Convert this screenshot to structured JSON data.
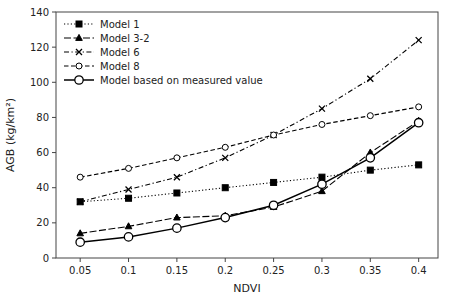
{
  "chart_data": {
    "type": "line",
    "x": [
      0.05,
      0.1,
      0.15,
      0.2,
      0.25,
      0.3,
      0.35,
      0.4
    ],
    "xlabel": "NDVI",
    "ylabel": "AGB  (kg/km²)",
    "xlim": [
      0.025,
      0.42
    ],
    "xticks": [
      0.05,
      0.1,
      0.15,
      0.2,
      0.25,
      0.3,
      0.35,
      0.4
    ],
    "ylim": [
      0,
      140
    ],
    "yticks": [
      0,
      20,
      40,
      60,
      80,
      100,
      120,
      140
    ],
    "grid": false,
    "legend": "upper left",
    "color": "#000000",
    "series": [
      {
        "name": "Model 1",
        "values": [
          32,
          34,
          37,
          40,
          43,
          46,
          50,
          53
        ],
        "marker": "square",
        "line_style": "dotted"
      },
      {
        "name": "Model 3-2",
        "values": [
          14,
          18,
          23,
          24,
          29,
          38,
          60,
          78
        ],
        "marker": "triangle",
        "line_style": "longdash"
      },
      {
        "name": "Model 6",
        "values": [
          32,
          39,
          46,
          57,
          70,
          85,
          102,
          124
        ],
        "marker": "x",
        "line_style": "dashdot"
      },
      {
        "name": "Model 8",
        "values": [
          46,
          51,
          57,
          63,
          70,
          76,
          81,
          86
        ],
        "marker": "circle",
        "line_style": "dashed"
      },
      {
        "name": "Model based on measured value",
        "values": [
          9,
          12,
          17,
          23,
          30,
          42,
          57,
          77
        ],
        "marker": "circle",
        "line_style": "solid"
      }
    ]
  }
}
